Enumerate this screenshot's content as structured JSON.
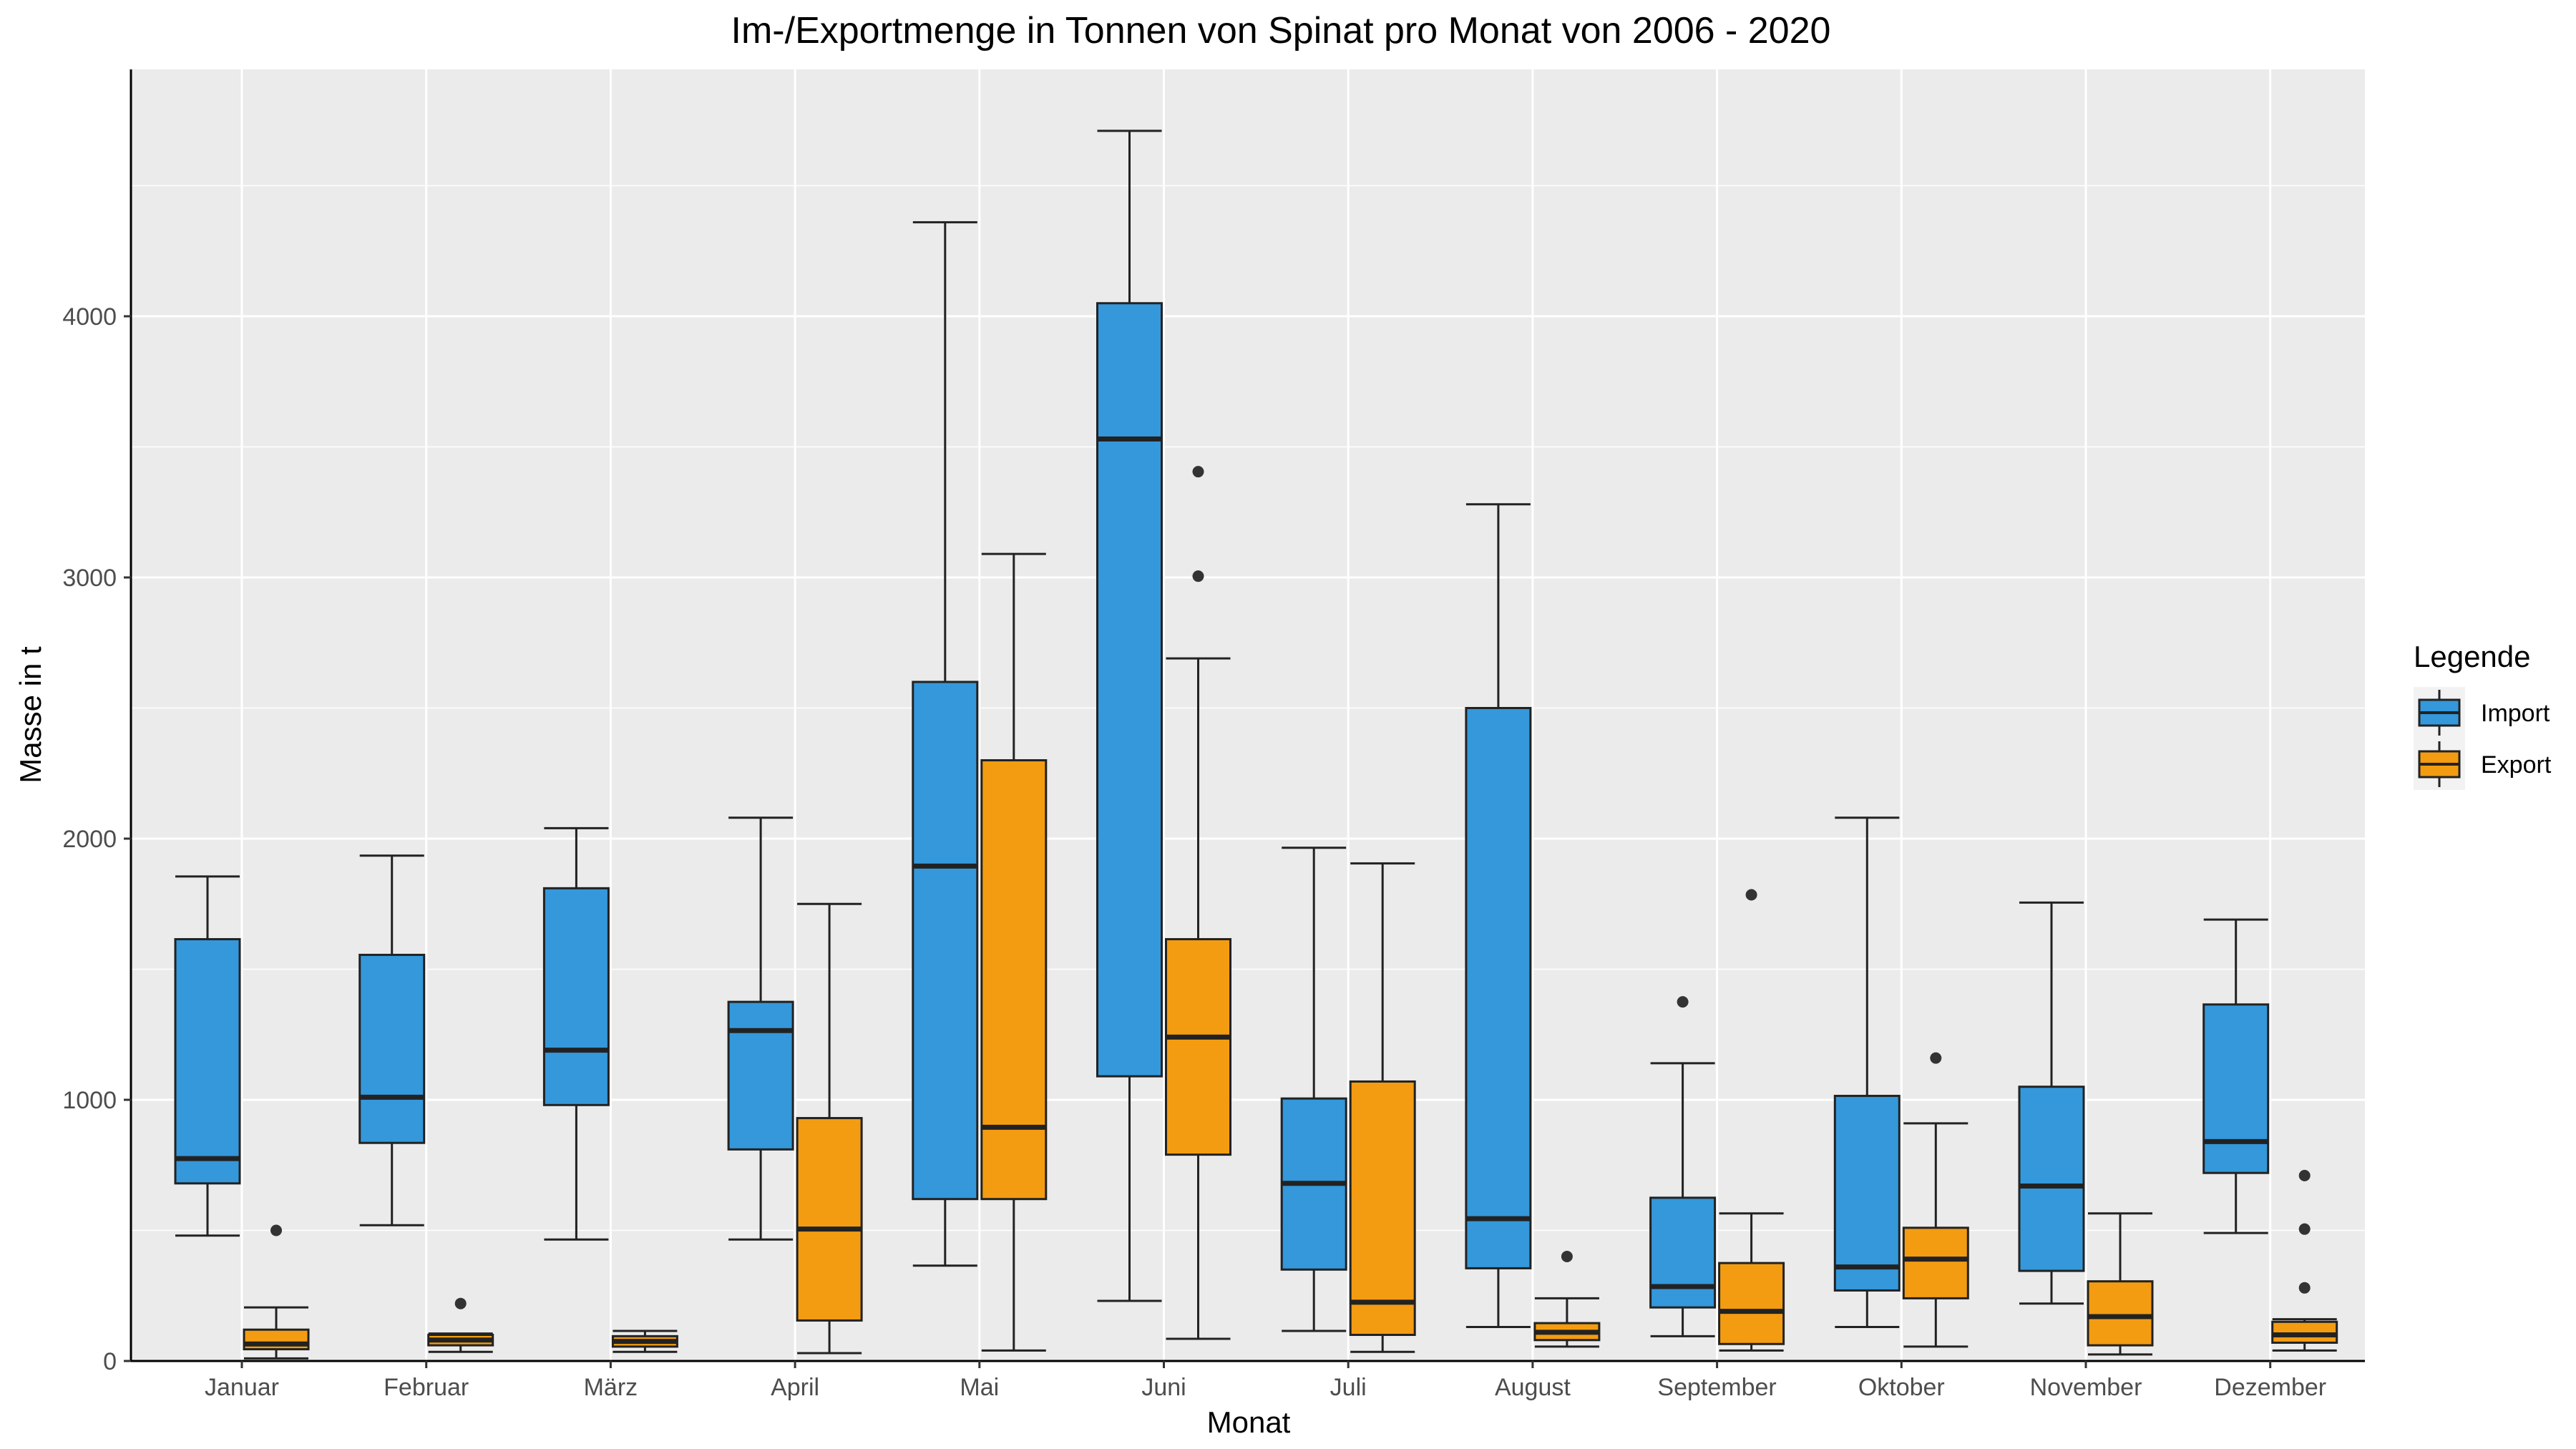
{
  "chart_data": {
    "type": "box",
    "title": "Im-/Exportmenge in Tonnen von Spinat pro Monat von 2006 - 2020",
    "xlabel": "Monat",
    "ylabel": "Masse in t",
    "ylim": [
      0,
      4900
    ],
    "yticks": [
      0,
      1000,
      2000,
      3000,
      4000
    ],
    "grid": true,
    "legend": {
      "title": "Legende",
      "position": "right"
    },
    "categories": [
      "Januar",
      "Februar",
      "März",
      "April",
      "Mai",
      "Juni",
      "Juli",
      "August",
      "September",
      "Oktober",
      "November",
      "Dezember"
    ],
    "series": [
      {
        "name": "Import",
        "color": "#3498db",
        "boxes": [
          {
            "min": 480,
            "q1": 680,
            "median": 775,
            "q3": 1615,
            "max": 1855,
            "outliers": []
          },
          {
            "min": 520,
            "q1": 835,
            "median": 1010,
            "q3": 1555,
            "max": 1935,
            "outliers": []
          },
          {
            "min": 465,
            "q1": 980,
            "median": 1190,
            "q3": 1810,
            "max": 2040,
            "outliers": []
          },
          {
            "min": 465,
            "q1": 810,
            "median": 1265,
            "q3": 1375,
            "max": 2080,
            "outliers": []
          },
          {
            "min": 365,
            "q1": 620,
            "median": 1895,
            "q3": 2600,
            "max": 4360,
            "outliers": []
          },
          {
            "min": 230,
            "q1": 1090,
            "median": 3530,
            "q3": 4050,
            "max": 4710,
            "outliers": []
          },
          {
            "min": 115,
            "q1": 350,
            "median": 680,
            "q3": 1005,
            "max": 1965,
            "outliers": []
          },
          {
            "min": 130,
            "q1": 355,
            "median": 545,
            "q3": 2500,
            "max": 3280,
            "outliers": []
          },
          {
            "min": 95,
            "q1": 205,
            "median": 285,
            "q3": 625,
            "max": 1140,
            "outliers": [
              1375
            ]
          },
          {
            "min": 130,
            "q1": 270,
            "median": 360,
            "q3": 1015,
            "max": 2080,
            "outliers": []
          },
          {
            "min": 220,
            "q1": 345,
            "median": 670,
            "q3": 1050,
            "max": 1755,
            "outliers": []
          },
          {
            "min": 490,
            "q1": 720,
            "median": 840,
            "q3": 1365,
            "max": 1690,
            "outliers": []
          }
        ]
      },
      {
        "name": "Export",
        "color": "#f39c12",
        "boxes": [
          {
            "min": 10,
            "q1": 45,
            "median": 65,
            "q3": 120,
            "max": 205,
            "outliers": [
              500
            ]
          },
          {
            "min": 35,
            "q1": 60,
            "median": 80,
            "q3": 100,
            "max": 105,
            "outliers": [
              220
            ]
          },
          {
            "min": 35,
            "q1": 55,
            "median": 75,
            "q3": 95,
            "max": 115,
            "outliers": []
          },
          {
            "min": 30,
            "q1": 155,
            "median": 505,
            "q3": 930,
            "max": 1750,
            "outliers": []
          },
          {
            "min": 40,
            "q1": 620,
            "median": 895,
            "q3": 2300,
            "max": 3090,
            "outliers": []
          },
          {
            "min": 85,
            "q1": 790,
            "median": 1240,
            "q3": 1615,
            "max": 2690,
            "outliers": [
              3005,
              3405
            ]
          },
          {
            "min": 35,
            "q1": 100,
            "median": 225,
            "q3": 1070,
            "max": 1905,
            "outliers": []
          },
          {
            "min": 55,
            "q1": 80,
            "median": 110,
            "q3": 145,
            "max": 240,
            "outliers": [
              400
            ]
          },
          {
            "min": 40,
            "q1": 65,
            "median": 190,
            "q3": 375,
            "max": 565,
            "outliers": [
              1785
            ]
          },
          {
            "min": 55,
            "q1": 240,
            "median": 390,
            "q3": 510,
            "max": 910,
            "outliers": [
              1160
            ]
          },
          {
            "min": 25,
            "q1": 60,
            "median": 170,
            "q3": 305,
            "max": 565,
            "outliers": []
          },
          {
            "min": 40,
            "q1": 70,
            "median": 100,
            "q3": 150,
            "max": 160,
            "outliers": [
              280,
              505,
              710
            ]
          }
        ]
      }
    ]
  },
  "colors": {
    "panel_background": "#ebebeb",
    "grid": "#ffffff",
    "axis": "#000000",
    "tick_label": "#4d4d4d"
  }
}
